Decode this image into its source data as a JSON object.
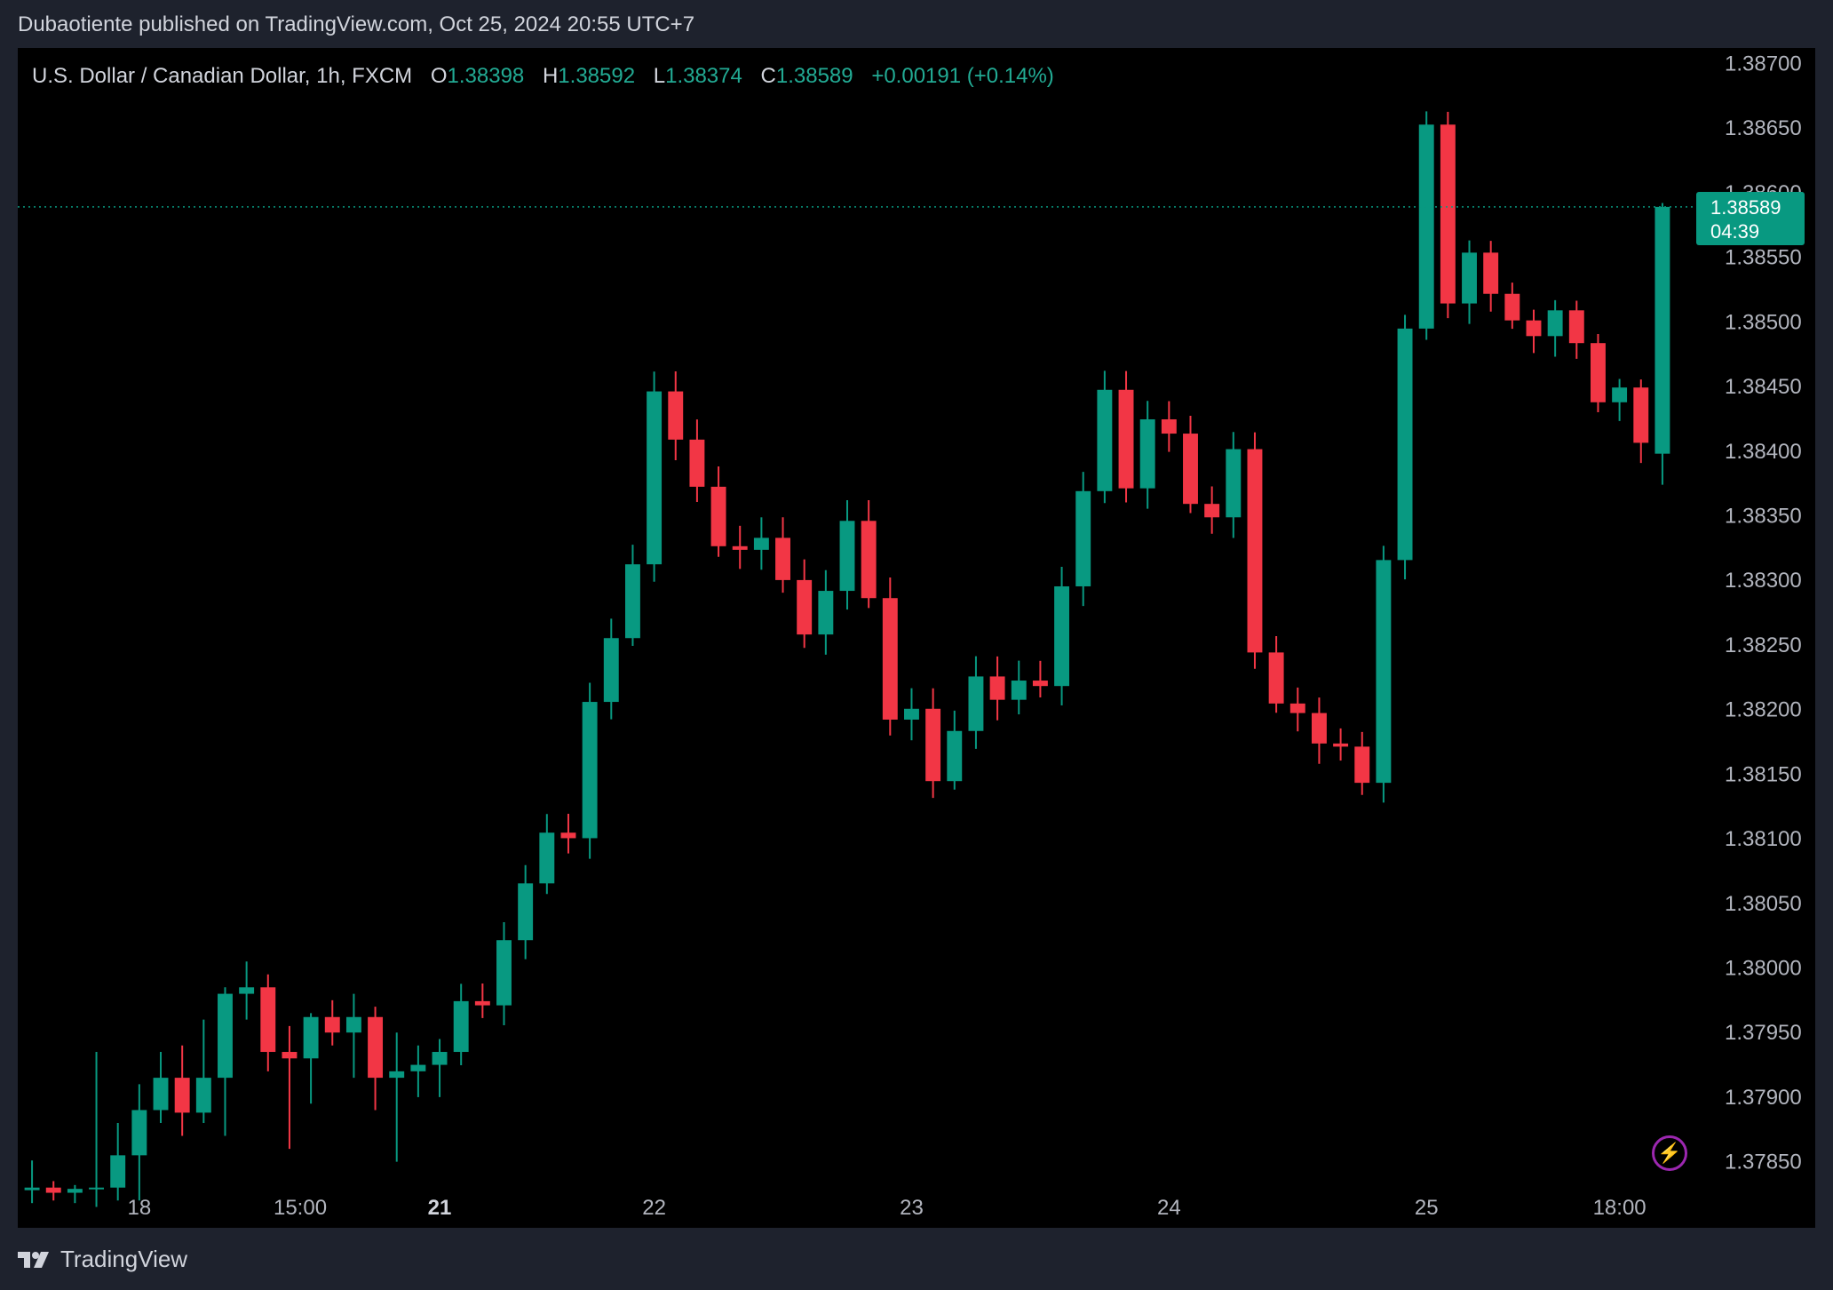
{
  "caption": "Dubaotiente published on TradingView.com, Oct 25, 2024 20:55 UTC+7",
  "legend": {
    "symbol": "U.S. Dollar / Canadian Dollar, 1h, FXCM",
    "o_label": "O",
    "o_value": "1.38398",
    "h_label": "H",
    "h_value": "1.38592",
    "l_label": "L",
    "l_value": "1.38374",
    "c_label": "C",
    "c_value": "1.38589",
    "change": "+0.00191 (+0.14%)"
  },
  "price_tag": {
    "price": "1.38589",
    "countdown": "04:39"
  },
  "brand": "TradingView",
  "colors": {
    "up": "#089981",
    "down": "#f23645",
    "background": "#000000",
    "frame": "#1e222d",
    "axis_text": "#b2b5be"
  },
  "chart_data": {
    "type": "candlestick",
    "x_ticks": [
      {
        "label": "18",
        "bold": false,
        "index": 5
      },
      {
        "label": "15:00",
        "bold": false,
        "index": 12.5
      },
      {
        "label": "21",
        "bold": true,
        "index": 19
      },
      {
        "label": "22",
        "bold": false,
        "index": 29
      },
      {
        "label": "23",
        "bold": false,
        "index": 41
      },
      {
        "label": "24",
        "bold": false,
        "index": 53
      },
      {
        "label": "25",
        "bold": false,
        "index": 65
      },
      {
        "label": "18:00",
        "bold": false,
        "index": 74
      }
    ],
    "y_ticks": [
      "1.38700",
      "1.38650",
      "1.38600",
      "1.38550",
      "1.38500",
      "1.38450",
      "1.38400",
      "1.38350",
      "1.38300",
      "1.38250",
      "1.38200",
      "1.38150",
      "1.38100",
      "1.38050",
      "1.38000",
      "1.37950",
      "1.37900",
      "1.37850"
    ],
    "ylim": [
      1.37825,
      1.38712
    ],
    "last_price": 1.38589,
    "candles": [
      [
        1.37828,
        1.37851,
        1.37818,
        1.3783
      ],
      [
        1.3783,
        1.37835,
        1.3782,
        1.37826
      ],
      [
        1.37826,
        1.37832,
        1.37818,
        1.37829
      ],
      [
        1.37829,
        1.37935,
        1.37815,
        1.3783
      ],
      [
        1.3783,
        1.3788,
        1.3782,
        1.37855
      ],
      [
        1.37855,
        1.3791,
        1.3782,
        1.3789
      ],
      [
        1.3789,
        1.37935,
        1.3788,
        1.37915
      ],
      [
        1.37915,
        1.3794,
        1.3787,
        1.37888
      ],
      [
        1.37888,
        1.3796,
        1.3788,
        1.37915
      ],
      [
        1.37915,
        1.37985,
        1.3787,
        1.3798
      ],
      [
        1.3798,
        1.38005,
        1.3796,
        1.37985
      ],
      [
        1.37985,
        1.37995,
        1.3792,
        1.37935
      ],
      [
        1.37935,
        1.37955,
        1.3786,
        1.3793
      ],
      [
        1.3793,
        1.37965,
        1.37895,
        1.37962
      ],
      [
        1.37962,
        1.37975,
        1.3794,
        1.3795
      ],
      [
        1.3795,
        1.3798,
        1.37915,
        1.37962
      ],
      [
        1.37962,
        1.3797,
        1.3789,
        1.37915
      ],
      [
        1.37915,
        1.3795,
        1.3785,
        1.3792
      ],
      [
        1.3792,
        1.3794,
        1.379,
        1.37925
      ],
      [
        1.37925,
        1.37945,
        1.379,
        1.37935
      ]
    ]
  }
}
